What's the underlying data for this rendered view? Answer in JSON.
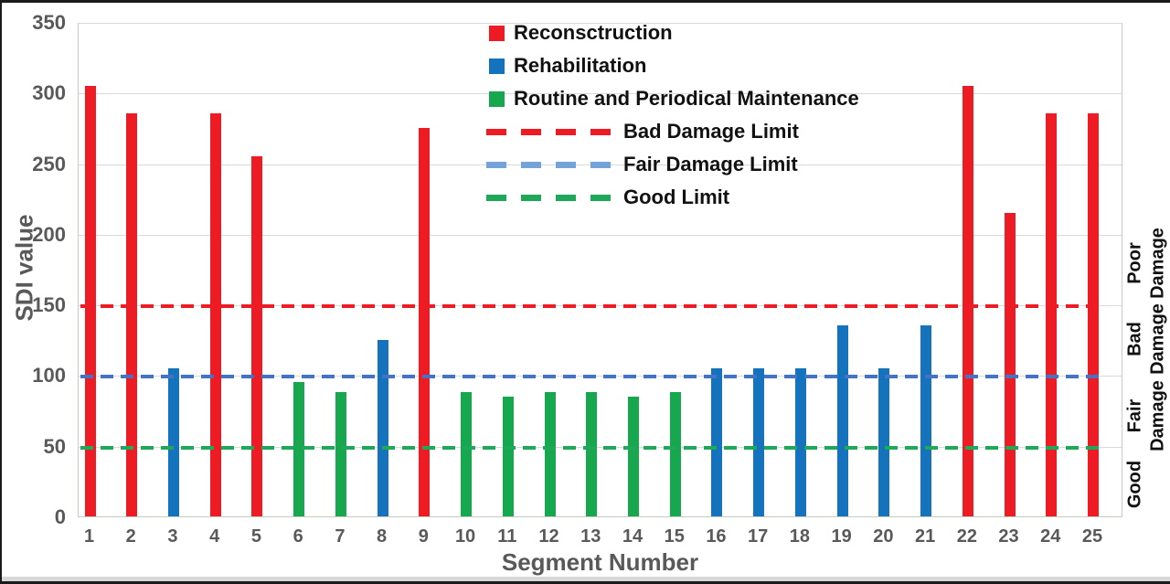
{
  "page": {
    "background": "#ffffff",
    "frame_color": "#1b1b1b"
  },
  "chart_data": {
    "type": "bar",
    "title": "",
    "xlabel": "Segment Number",
    "ylabel": "SDI value",
    "ylim": [
      0,
      350
    ],
    "yticks": [
      0,
      50,
      100,
      150,
      200,
      250,
      300,
      350
    ],
    "grid": "horizontal-only",
    "gridline_color": "#d9d9d9",
    "axis_text_color": "#595959",
    "legend_position": "top-center-inside",
    "categories": [
      "1",
      "2",
      "3",
      "4",
      "5",
      "6",
      "7",
      "8",
      "9",
      "10",
      "11",
      "12",
      "13",
      "14",
      "15",
      "16",
      "17",
      "18",
      "19",
      "20",
      "21",
      "22",
      "23",
      "24",
      "25"
    ],
    "series_legend": [
      {
        "label": "Reconsctruction",
        "marker": "square",
        "color": "#ED1C24"
      },
      {
        "label": "Rehabilitation",
        "marker": "square",
        "color": "#1572BD"
      },
      {
        "label": "Routine and Periodical Maintenance",
        "marker": "square",
        "color": "#17A74F"
      },
      {
        "label": "Bad Damage Limit",
        "marker": "dashed-line",
        "color": "#ED1C24"
      },
      {
        "label": "Fair Damage Limit",
        "marker": "dashed-line",
        "color": "#74A4D7"
      },
      {
        "label": "Good Limit",
        "marker": "dashed-line",
        "color": "#1FA75A"
      }
    ],
    "bars": [
      {
        "segment": "1",
        "value": 305,
        "category": "Reconsctruction"
      },
      {
        "segment": "2",
        "value": 285,
        "category": "Reconsctruction"
      },
      {
        "segment": "3",
        "value": 105,
        "category": "Rehabilitation"
      },
      {
        "segment": "4",
        "value": 285,
        "category": "Reconsctruction"
      },
      {
        "segment": "5",
        "value": 255,
        "category": "Reconsctruction"
      },
      {
        "segment": "6",
        "value": 95,
        "category": "Routine and Periodical Maintenance"
      },
      {
        "segment": "7",
        "value": 88,
        "category": "Routine and Periodical Maintenance"
      },
      {
        "segment": "8",
        "value": 125,
        "category": "Rehabilitation"
      },
      {
        "segment": "9",
        "value": 275,
        "category": "Reconsctruction"
      },
      {
        "segment": "10",
        "value": 88,
        "category": "Routine and Periodical Maintenance"
      },
      {
        "segment": "11",
        "value": 85,
        "category": "Routine and Periodical Maintenance"
      },
      {
        "segment": "12",
        "value": 88,
        "category": "Routine and Periodical Maintenance"
      },
      {
        "segment": "13",
        "value": 88,
        "category": "Routine and Periodical Maintenance"
      },
      {
        "segment": "14",
        "value": 85,
        "category": "Routine and Periodical Maintenance"
      },
      {
        "segment": "15",
        "value": 88,
        "category": "Routine and Periodical Maintenance"
      },
      {
        "segment": "16",
        "value": 105,
        "category": "Rehabilitation"
      },
      {
        "segment": "17",
        "value": 105,
        "category": "Rehabilitation"
      },
      {
        "segment": "18",
        "value": 105,
        "category": "Rehabilitation"
      },
      {
        "segment": "19",
        "value": 135,
        "category": "Rehabilitation"
      },
      {
        "segment": "20",
        "value": 105,
        "category": "Rehabilitation"
      },
      {
        "segment": "21",
        "value": 135,
        "category": "Rehabilitation"
      },
      {
        "segment": "22",
        "value": 305,
        "category": "Reconsctruction"
      },
      {
        "segment": "23",
        "value": 215,
        "category": "Reconsctruction"
      },
      {
        "segment": "24",
        "value": 285,
        "category": "Reconsctruction"
      },
      {
        "segment": "25",
        "value": 285,
        "category": "Reconsctruction"
      }
    ],
    "limit_lines": [
      {
        "label": "Bad Damage Limit",
        "value": 150,
        "color": "#ED1C24"
      },
      {
        "label": "Fair Damage Limit",
        "value": 100,
        "color": "#4472C4"
      },
      {
        "label": "Good Limit",
        "value": 50,
        "color": "#1FA75A"
      }
    ],
    "zone_labels": [
      {
        "lines": [
          "Poor",
          "Damage"
        ],
        "center_value": 180
      },
      {
        "lines": [
          "Bad",
          "Damage"
        ],
        "center_value": 126
      },
      {
        "lines": [
          "Fair",
          "Damage"
        ],
        "center_value": 72
      },
      {
        "lines": [
          "Good"
        ],
        "center_value": 23
      }
    ]
  }
}
